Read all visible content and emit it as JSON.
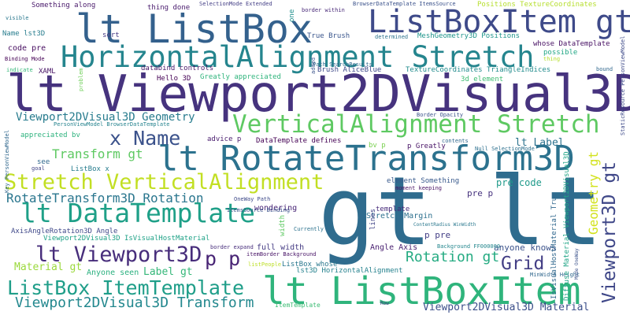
{
  "words": [
    {
      "text": "gt lt",
      "color": "#2f6c8e"
    },
    {
      "text": "lt Viewport2DVisual3D",
      "color": "#46337e"
    },
    {
      "text": "lt ListBoxItem",
      "color": "#2fb47c"
    },
    {
      "text": "lt RotateTransform3D",
      "color": "#2c728e"
    },
    {
      "text": "lt ListBox",
      "color": "#34618d"
    },
    {
      "text": "ListBoxItem gt",
      "color": "#3e4a89"
    },
    {
      "text": "HorizontalAlignment Stretch",
      "color": "#25858e"
    },
    {
      "text": "VerticalAlignment Stretch",
      "color": "#5ec962"
    },
    {
      "text": "Stretch VerticalAlignment",
      "color": "#c2df23"
    },
    {
      "text": "lt DataTemplate",
      "color": "#1fa088"
    },
    {
      "text": "lt Viewport3D",
      "color": "#472d7b"
    },
    {
      "text": "ListBox ItemTemplate",
      "color": "#1f9e89"
    },
    {
      "text": "Viewport2DVisual3D Transform",
      "color": "#23888e"
    },
    {
      "text": "x Name",
      "color": "#3b528b"
    },
    {
      "text": "Grid",
      "color": "#433e85"
    },
    {
      "text": "p p",
      "color": "#482475"
    },
    {
      "text": "Rotation gt",
      "color": "#25ab82"
    },
    {
      "text": "RotateTransform3D Rotation",
      "color": "#2a768e"
    },
    {
      "text": "Viewport2DVisual3D Geometry",
      "color": "#287c8e"
    },
    {
      "text": "Transform gt",
      "color": "#5ec962"
    },
    {
      "text": "Viewport3D gt",
      "color": "#3f4788"
    },
    {
      "text": "Geometry gt",
      "color": "#d2e21b"
    },
    {
      "text": "Viewport2DVisual3D Material",
      "color": "#3c4f8a"
    },
    {
      "text": "Material gt",
      "color": "#9bd93c"
    },
    {
      "text": "Label gt",
      "color": "#35b779"
    },
    {
      "text": "lt Label",
      "color": "#2c728e"
    },
    {
      "text": "pre code",
      "color": "#1f9a8a"
    },
    {
      "text": "pre p",
      "color": "#46327e"
    },
    {
      "text": "p pre",
      "color": "#433e85"
    },
    {
      "text": "anyone knows",
      "color": "#3b528b"
    },
    {
      "text": "Anyone seen",
      "color": "#2ab07f"
    },
    {
      "text": "Angle Axis",
      "color": "#481f70"
    },
    {
      "text": "Stretch Margin",
      "color": "#2d708e"
    },
    {
      "text": "template",
      "color": "#472a7a"
    },
    {
      "text": "wondering",
      "color": "#482576"
    },
    {
      "text": "full width",
      "color": "#443a83"
    },
    {
      "text": "ListBox whose",
      "color": "#2a788e"
    },
    {
      "text": "lst3D HorizontalAlignment",
      "color": "#26828e"
    },
    {
      "text": "AxisAngleRotation3D Angle",
      "color": "#3f4889"
    },
    {
      "text": "Viewport2DVisual3D IsVisualHostMaterial",
      "color": "#1fa287"
    },
    {
      "text": "DataTemplate defines",
      "color": "#440154"
    },
    {
      "text": "element Something",
      "color": "#38598c"
    },
    {
      "text": "moment keeping",
      "color": "#471063"
    },
    {
      "text": "p Greatly",
      "color": "#471365"
    },
    {
      "text": "bv p",
      "color": "#7ad151"
    },
    {
      "text": "advice p",
      "color": "#481b6d"
    },
    {
      "text": "TextureCoordinates TriangleIndices",
      "color": "#228c8d"
    },
    {
      "text": "3d element",
      "color": "#3fbc73"
    },
    {
      "text": "Brush AliceBlue",
      "color": "#3e4989"
    },
    {
      "text": "Hello 3D",
      "color": "#440154"
    },
    {
      "text": "databind controls",
      "color": "#481769"
    },
    {
      "text": "Greatly appreciated",
      "color": "#2fb47c"
    },
    {
      "text": "XAML",
      "color": "#471365"
    },
    {
      "text": "code pre",
      "color": "#470d60"
    },
    {
      "text": "Name lst3D",
      "color": "#287d8e"
    },
    {
      "text": "sort",
      "color": "#443983"
    },
    {
      "text": "Something along",
      "color": "#48186a"
    },
    {
      "text": "thing done",
      "color": "#481a6c"
    },
    {
      "text": "True Brush",
      "color": "#39558c"
    },
    {
      "text": "MeshGeometry3D Positions",
      "color": "#1f958b"
    },
    {
      "text": "whose DataTemplate",
      "color": "#471063"
    },
    {
      "text": "possible",
      "color": "#22a785"
    },
    {
      "text": "Positions TextureCoordinates",
      "color": "#b5de2b"
    },
    {
      "text": "appreciated bv",
      "color": "#2db27d"
    },
    {
      "text": "see",
      "color": "#31688e"
    },
    {
      "text": "goal",
      "color": "#414487"
    },
    {
      "text": "ListBox x",
      "color": "#287d8e"
    },
    {
      "text": "PersonViewModel BrowserDataTemplate",
      "color": "#25838e"
    },
    {
      "text": "Border Opacity",
      "color": "#3b528b"
    },
    {
      "text": "Null SelectionMode",
      "color": "#2d708e"
    },
    {
      "text": "contents",
      "color": "#31688e"
    },
    {
      "text": "Path SearchResults",
      "color": "#2f6b8e"
    },
    {
      "text": "SelectionMode Extended",
      "color": "#433e85"
    },
    {
      "text": "BrowserDataTemplate ItemsSource",
      "color": "#3b528b"
    },
    {
      "text": "border within",
      "color": "#482878"
    },
    {
      "text": "visible",
      "color": "#2a788e"
    },
    {
      "text": "Binding Mode",
      "color": "#440154"
    },
    {
      "text": "indicate",
      "color": "#35b779"
    },
    {
      "text": "determined",
      "color": "#2c738e"
    },
    {
      "text": "thing",
      "color": "#b5de2b"
    },
    {
      "text": "bound",
      "color": "#31688e"
    },
    {
      "text": "OneWay Path",
      "color": "#3e4a89"
    },
    {
      "text": "ItemsSource Binding",
      "color": "#3b528b"
    },
    {
      "text": "Currently",
      "color": "#2c728e"
    },
    {
      "text": "ContentRadius WinWidth",
      "color": "#2a788e"
    },
    {
      "text": "border expand",
      "color": "#472d7b"
    },
    {
      "text": "itemBorder Background",
      "color": "#481467"
    },
    {
      "text": "Background FF000000",
      "color": "#24878e"
    },
    {
      "text": "MinWidth Height",
      "color": "#31688e"
    },
    {
      "text": "listPeople",
      "color": "#bddf26"
    },
    {
      "text": "ItemTemplate",
      "color": "#3dbc74"
    },
    {
      "text": "Row",
      "color": "#443a83"
    },
    {
      "text": "one",
      "color": "#21908d"
    },
    {
      "text": "added",
      "color": "#3b528b"
    },
    {
      "text": "problem",
      "color": "#6ece58"
    },
    {
      "text": "width",
      "color": "#5ec962"
    },
    {
      "text": "lines",
      "color": "#414487"
    },
    {
      "text": "Key PersonViewModel",
      "color": "#31688e"
    },
    {
      "text": "IsVisualHostMaterial True",
      "color": "#31688e"
    },
    {
      "text": "Diffuse Material Viewport2DVisual3D",
      "color": "#20a486"
    },
    {
      "text": "Mode OneWay",
      "color": "#3b528b"
    },
    {
      "text": "StaticResource PersonViewModel",
      "color": "#3e4a89"
    }
  ]
}
